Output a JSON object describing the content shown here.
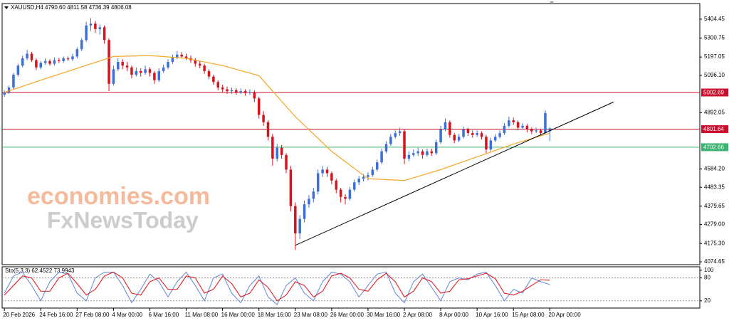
{
  "chart_data": {
    "type": "candlestick",
    "title": "XAUUSD,H4 4790.60 4811.58 4736.39 4806.08",
    "bull_color": "#3d6fd6",
    "bear_color": "#d7141e",
    "xlim": [
      -0.5,
      153
    ],
    "ylim": [
      4059,
      5490
    ],
    "yticks": [
      5404.45,
      5300.75,
      5197.05,
      {
        "value": 5096.1,
        "label": "5096.10"
      },
      4892.05,
      {
        "value": 4584.2,
        "label": "4584.20"
      },
      4483.35,
      4379.65,
      {
        "value": 4279.0,
        "label": "4279.00"
      },
      {
        "value": 4175.3,
        "label": "4175.30"
      },
      4074.65
    ],
    "xticks": [
      {
        "value": 0,
        "label": "20 Feb 2026"
      },
      {
        "value": 8,
        "label": "24 Feb 16:00"
      },
      {
        "value": 16,
        "label": "27 Feb 08:00"
      },
      {
        "value": 24,
        "label": "4 Mar 00:00"
      },
      {
        "value": 32,
        "label": "6 Mar 16:00"
      },
      {
        "value": 40,
        "label": "11 Mar 08:00"
      },
      {
        "value": 48,
        "label": "16 Mar 00:00"
      },
      {
        "value": 56,
        "label": "18 Mar 16:00"
      },
      {
        "value": 64,
        "label": "23 Mar 08:00"
      },
      {
        "value": 72,
        "label": "26 Mar 00:00"
      },
      {
        "value": 80,
        "label": "30 Mar 16:00"
      },
      {
        "value": 88,
        "label": "2 Apr 08:00"
      },
      {
        "value": 96,
        "label": "8 Apr 00:00"
      },
      {
        "value": 104,
        "label": "10 Apr 16:00"
      },
      {
        "value": 112,
        "label": "15 Apr 08:00"
      },
      {
        "value": 120,
        "label": "20 Apr 00:00"
      }
    ],
    "candles": [
      [
        4990,
        5015,
        4980,
        5003
      ],
      [
        5003,
        5040,
        4995,
        5030
      ],
      [
        5030,
        5110,
        5020,
        5100
      ],
      [
        5100,
        5160,
        5090,
        5150
      ],
      [
        5150,
        5205,
        5140,
        5190
      ],
      [
        5190,
        5235,
        5180,
        5215
      ],
      [
        5215,
        5225,
        5170,
        5180
      ],
      [
        5180,
        5190,
        5125,
        5140
      ],
      [
        5140,
        5175,
        5130,
        5165
      ],
      [
        5165,
        5190,
        5155,
        5175
      ],
      [
        5175,
        5185,
        5150,
        5160
      ],
      [
        5160,
        5195,
        5150,
        5180
      ],
      [
        5180,
        5190,
        5165,
        5175
      ],
      [
        5175,
        5200,
        5165,
        5190
      ],
      [
        5190,
        5200,
        5175,
        5185
      ],
      [
        5185,
        5215,
        5175,
        5200
      ],
      [
        5200,
        5250,
        5190,
        5240
      ],
      [
        5240,
        5300,
        5230,
        5290
      ],
      [
        5290,
        5390,
        5280,
        5370
      ],
      [
        5370,
        5410,
        5340,
        5380
      ],
      [
        5380,
        5395,
        5330,
        5350
      ],
      [
        5350,
        5375,
        5320,
        5360
      ],
      [
        5360,
        5370,
        5270,
        5290
      ],
      [
        5290,
        5300,
        5010,
        5050
      ],
      [
        5050,
        5150,
        5040,
        5130
      ],
      [
        5130,
        5190,
        5120,
        5170
      ],
      [
        5170,
        5185,
        5130,
        5150
      ],
      [
        5150,
        5170,
        5120,
        5140
      ],
      [
        5140,
        5150,
        5080,
        5100
      ],
      [
        5100,
        5140,
        5090,
        5120
      ],
      [
        5120,
        5135,
        5090,
        5110
      ],
      [
        5110,
        5150,
        5100,
        5130
      ],
      [
        5130,
        5140,
        5090,
        5110
      ],
      [
        5110,
        5120,
        5050,
        5070
      ],
      [
        5070,
        5135,
        5060,
        5120
      ],
      [
        5120,
        5155,
        5110,
        5140
      ],
      [
        5140,
        5185,
        5130,
        5170
      ],
      [
        5170,
        5210,
        5160,
        5195
      ],
      [
        5195,
        5230,
        5185,
        5210
      ],
      [
        5210,
        5225,
        5190,
        5200
      ],
      [
        5200,
        5215,
        5180,
        5190
      ],
      [
        5190,
        5205,
        5165,
        5180
      ],
      [
        5180,
        5190,
        5145,
        5160
      ],
      [
        5160,
        5175,
        5135,
        5150
      ],
      [
        5150,
        5160,
        5105,
        5120
      ],
      [
        5120,
        5130,
        5075,
        5090
      ],
      [
        5090,
        5100,
        5045,
        5060
      ],
      [
        5060,
        5070,
        5015,
        5030
      ],
      [
        5030,
        5045,
        5005,
        5020
      ],
      [
        5020,
        5035,
        4995,
        5010
      ],
      [
        5010,
        5030,
        4995,
        5015
      ],
      [
        5015,
        5025,
        4990,
        5005
      ],
      [
        5005,
        5025,
        4995,
        5010
      ],
      [
        5010,
        5020,
        4985,
        5000
      ],
      [
        5000,
        5020,
        4990,
        5005
      ],
      [
        5005,
        5015,
        4950,
        4970
      ],
      [
        4970,
        4980,
        4860,
        4880
      ],
      [
        4880,
        4900,
        4820,
        4840
      ],
      [
        4840,
        4850,
        4740,
        4760
      ],
      [
        4760,
        4775,
        4600,
        4640
      ],
      [
        4640,
        4720,
        4625,
        4700
      ],
      [
        4700,
        4715,
        4640,
        4660
      ],
      [
        4660,
        4670,
        4560,
        4580
      ],
      [
        4580,
        4600,
        4350,
        4380
      ],
      [
        4380,
        4400,
        4140,
        4230
      ],
      [
        4230,
        4330,
        4200,
        4310
      ],
      [
        4310,
        4410,
        4290,
        4390
      ],
      [
        4390,
        4440,
        4370,
        4420
      ],
      [
        4420,
        4480,
        4400,
        4460
      ],
      [
        4460,
        4580,
        4445,
        4560
      ],
      [
        4560,
        4600,
        4540,
        4580
      ],
      [
        4580,
        4595,
        4540,
        4560
      ],
      [
        4560,
        4570,
        4500,
        4520
      ],
      [
        4520,
        4530,
        4450,
        4470
      ],
      [
        4470,
        4480,
        4400,
        4430
      ],
      [
        4430,
        4445,
        4390,
        4420
      ],
      [
        4420,
        4485,
        4410,
        4470
      ],
      [
        4470,
        4525,
        4460,
        4510
      ],
      [
        4510,
        4545,
        4495,
        4530
      ],
      [
        4530,
        4555,
        4515,
        4540
      ],
      [
        4540,
        4565,
        4520,
        4550
      ],
      [
        4550,
        4595,
        4540,
        4580
      ],
      [
        4580,
        4635,
        4570,
        4620
      ],
      [
        4620,
        4695,
        4610,
        4680
      ],
      [
        4680,
        4735,
        4670,
        4720
      ],
      [
        4720,
        4775,
        4710,
        4760
      ],
      [
        4760,
        4795,
        4750,
        4780
      ],
      [
        4780,
        4810,
        4765,
        4790
      ],
      [
        4790,
        4800,
        4610,
        4640
      ],
      [
        4640,
        4680,
        4625,
        4660
      ],
      [
        4660,
        4690,
        4650,
        4670
      ],
      [
        4670,
        4700,
        4655,
        4680
      ],
      [
        4680,
        4690,
        4640,
        4660
      ],
      [
        4660,
        4695,
        4650,
        4680
      ],
      [
        4680,
        4695,
        4655,
        4670
      ],
      [
        4670,
        4745,
        4660,
        4730
      ],
      [
        4730,
        4820,
        4720,
        4800
      ],
      [
        4800,
        4860,
        4790,
        4840
      ],
      [
        4840,
        4850,
        4755,
        4770
      ],
      [
        4770,
        4780,
        4725,
        4740
      ],
      [
        4740,
        4775,
        4730,
        4760
      ],
      [
        4760,
        4815,
        4750,
        4800
      ],
      [
        4800,
        4810,
        4765,
        4780
      ],
      [
        4780,
        4795,
        4755,
        4770
      ],
      [
        4770,
        4795,
        4760,
        4780
      ],
      [
        4780,
        4790,
        4745,
        4760
      ],
      [
        4760,
        4770,
        4670,
        4690
      ],
      [
        4690,
        4755,
        4680,
        4740
      ],
      [
        4740,
        4775,
        4730,
        4760
      ],
      [
        4760,
        4795,
        4750,
        4780
      ],
      [
        4780,
        4835,
        4770,
        4820
      ],
      [
        4820,
        4870,
        4810,
        4850
      ],
      [
        4850,
        4865,
        4825,
        4840
      ],
      [
        4840,
        4850,
        4795,
        4810
      ],
      [
        4810,
        4835,
        4800,
        4820
      ],
      [
        4820,
        4830,
        4785,
        4800
      ],
      [
        4800,
        4810,
        4775,
        4790
      ],
      [
        4790,
        4810,
        4780,
        4795
      ],
      [
        4795,
        4805,
        4765,
        4780
      ],
      [
        4780,
        4905,
        4770,
        4890
      ],
      [
        4790.6,
        4811.58,
        4736.39,
        4806.08
      ]
    ],
    "moving_average": {
      "color": "#f5a623",
      "x": [
        0,
        8,
        16,
        24,
        32,
        40,
        48,
        56,
        64,
        72,
        80,
        88,
        96,
        104,
        112,
        120
      ],
      "values": [
        5003,
        5070,
        5135,
        5200,
        5205,
        5190,
        5150,
        5095,
        4870,
        4680,
        4530,
        4520,
        4580,
        4650,
        4720,
        4780
      ]
    },
    "hlines": [
      {
        "value": 5002.69,
        "color": "#c8102e"
      },
      {
        "value": 4801.64,
        "color": "#c8102e"
      },
      {
        "value": 4702.66,
        "color": "#3cb371"
      }
    ],
    "trendline": {
      "x": [
        64,
        134
      ],
      "y": [
        4165,
        4950
      ],
      "color": "#000000"
    },
    "stochastic": {
      "label": "Sto(5,3,3) 62.4522 73.9943",
      "ylim": [
        1,
        109
      ],
      "yticks": [
        100,
        80,
        20
      ],
      "levels": [
        80,
        20
      ],
      "series": [
        {
          "color": "#6f8fd6",
          "values": [
            40,
            85,
            95,
            60,
            20,
            70,
            95,
            90,
            40,
            20,
            80,
            95,
            95,
            60,
            15,
            50,
            90,
            70,
            30,
            70,
            95,
            60,
            20,
            80,
            90,
            40,
            15,
            60,
            85,
            30,
            10,
            60,
            80,
            40,
            20,
            70,
            95,
            90,
            70,
            30,
            60,
            90,
            95,
            40,
            15,
            70,
            90,
            55,
            20,
            70,
            80,
            75,
            90,
            95,
            60,
            20,
            50,
            40,
            80,
            70,
            62.4522
          ]
        },
        {
          "color": "#e0202a",
          "values": [
            35,
            60,
            85,
            80,
            45,
            45,
            80,
            92,
            65,
            35,
            50,
            85,
            95,
            80,
            40,
            35,
            70,
            80,
            50,
            50,
            85,
            80,
            40,
            50,
            85,
            65,
            30,
            40,
            75,
            55,
            20,
            35,
            70,
            60,
            30,
            45,
            85,
            92,
            80,
            50,
            45,
            75,
            92,
            70,
            30,
            45,
            80,
            70,
            40,
            45,
            75,
            78,
            85,
            92,
            78,
            40,
            35,
            45,
            60,
            75,
            73.9943
          ]
        }
      ]
    },
    "watermark": [
      "economies.com",
      "FxNewsToday"
    ]
  }
}
